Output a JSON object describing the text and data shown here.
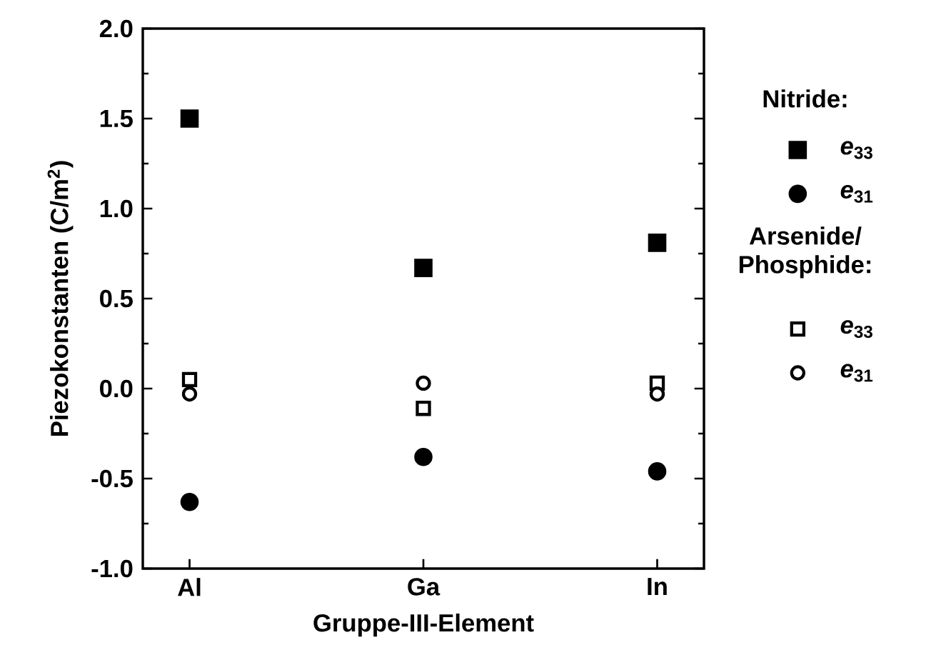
{
  "chart_data": {
    "type": "scatter",
    "xlabel": "Gruppe-III-Element",
    "ylabel": "Piezokonstanten (C/m$^{2}$)",
    "categories": [
      "Al",
      "Ga",
      "In"
    ],
    "series": [
      {
        "name": "*e*$_{33}$",
        "color": "#000000",
        "marker": "square",
        "values": [
          1.5,
          0.67,
          0.81
        ]
      },
      {
        "name": "*e*$_{31}$",
        "color": "#000000",
        "marker": "circle",
        "values": [
          -0.63,
          -0.38,
          -0.46
        ]
      },
      {
        "name": "*e*$_{33}$",
        "color": "#000000",
        "marker": "square-open",
        "values": [
          0.05,
          -0.11,
          0.03
        ]
      },
      {
        "name": "*e*$_{31}$",
        "color": "#000000",
        "marker": "circle-open",
        "values": [
          -0.03,
          0.03,
          -0.03
        ]
      }
    ],
    "legend_title": "Nitride:",
    "annotations": [
      "Arsenide/ Phosphide:"
    ],
    "ylim": [
      -1.0,
      2.0
    ],
    "yticks": [
      {
        "value": -1.0,
        "label": "-1.0"
      },
      {
        "value": -0.5,
        "label": "-0.5"
      },
      {
        "value": 0.0,
        "label": "0.0"
      },
      {
        "value": 0.5,
        "label": "0.5"
      },
      {
        "value": 1.0,
        "label": "1.0"
      },
      {
        "value": 1.5,
        "label": "1.5"
      },
      {
        "value": 2.0,
        "label": "2.0"
      }
    ],
    "legend": "right",
    "grid": false
  }
}
